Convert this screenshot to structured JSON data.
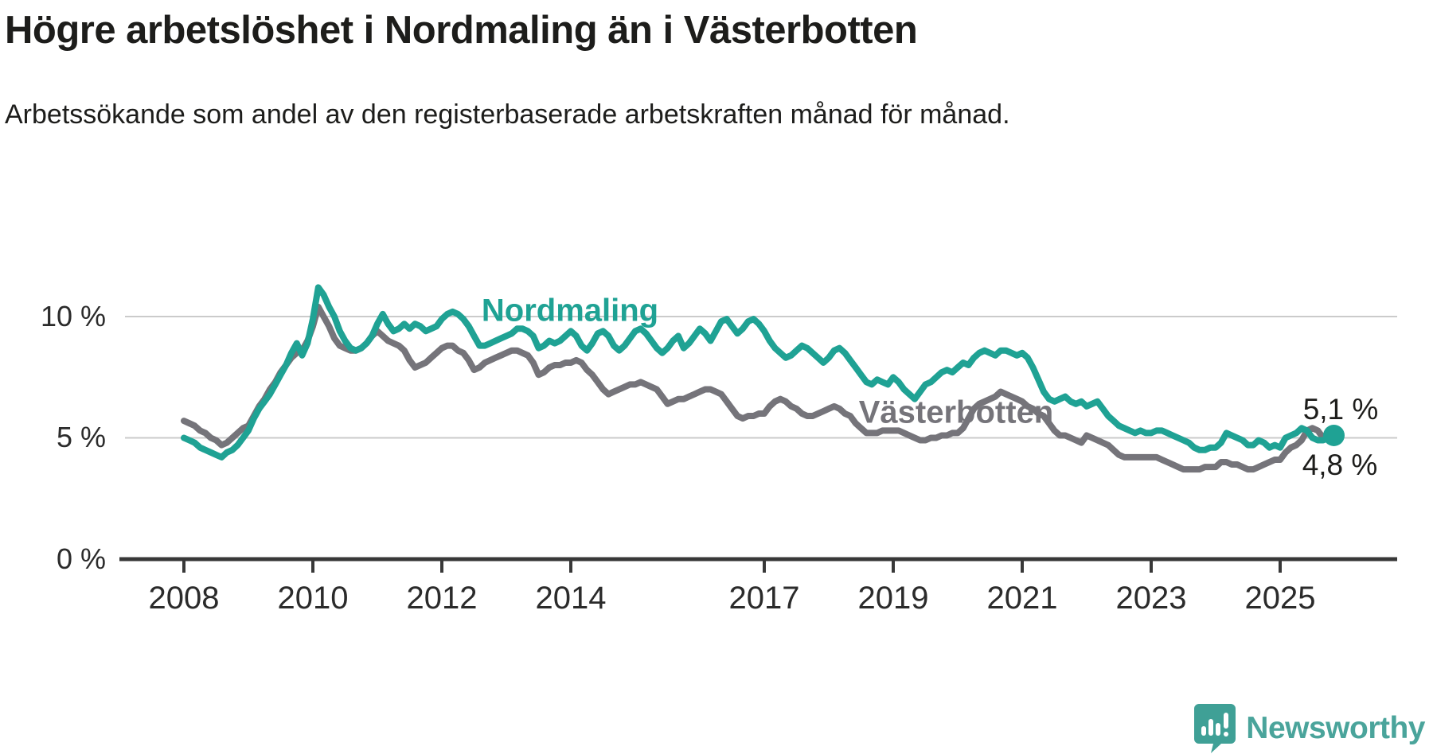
{
  "title": "Högre arbetslöshet i Nordmaling än i Västerbotten",
  "subtitle": "Arbetssökande som andel av den registerbaserade arbetskraften månad för månad.",
  "colors": {
    "nordmaling": "#1fa294",
    "vasterbotten": "#75747a",
    "grid": "#cbcbcb",
    "axis": "#383838",
    "text": "#1d1d1b",
    "logo_teal": "#4aa49b"
  },
  "labels": {
    "nordmaling": "Nordmaling",
    "vasterbotten": "Västerbotten",
    "end_value_nordmaling": "5,1 %",
    "end_value_vasterbotten": "4,8 %"
  },
  "logo": {
    "text": "Newsworthy",
    "icon": "newsworthy-speech-bubble-bars"
  },
  "chart_data": {
    "type": "line",
    "unit": "%",
    "start_year": 2008,
    "points_per_year": 12,
    "end_period": "late 2025",
    "x_ticks": [
      2008,
      2010,
      2012,
      2014,
      2017,
      2019,
      2021,
      2023,
      2025
    ],
    "y_ticks": [
      {
        "value": 0,
        "label": "0 %"
      },
      {
        "value": 5,
        "label": "5 %"
      },
      {
        "value": 10,
        "label": "10 %"
      }
    ],
    "ylim": [
      0,
      13.8
    ],
    "grid": "horizontal-only",
    "legend_position": "inline-labels",
    "series": [
      {
        "name": "Nordmaling",
        "color": "#1fa294",
        "latest_value": 5.1,
        "latest_label": "5,1 %",
        "values": [
          5.0,
          4.9,
          4.8,
          4.6,
          4.5,
          4.4,
          4.3,
          4.2,
          4.4,
          4.5,
          4.7,
          5.0,
          5.3,
          5.8,
          6.2,
          6.5,
          6.8,
          7.2,
          7.6,
          8.0,
          8.5,
          8.9,
          8.4,
          8.9,
          9.9,
          11.2,
          10.9,
          10.4,
          10.0,
          9.4,
          9.0,
          8.7,
          8.6,
          8.7,
          8.9,
          9.2,
          9.7,
          10.1,
          9.7,
          9.4,
          9.5,
          9.7,
          9.5,
          9.7,
          9.6,
          9.4,
          9.5,
          9.6,
          9.9,
          10.1,
          10.2,
          10.1,
          9.9,
          9.6,
          9.2,
          8.8,
          8.8,
          8.9,
          9.0,
          9.1,
          9.2,
          9.3,
          9.5,
          9.5,
          9.4,
          9.2,
          8.7,
          8.8,
          9.0,
          8.9,
          9.0,
          9.2,
          9.4,
          9.2,
          8.8,
          8.6,
          8.9,
          9.3,
          9.4,
          9.2,
          8.8,
          8.6,
          8.8,
          9.1,
          9.4,
          9.5,
          9.3,
          9.0,
          8.7,
          8.5,
          8.7,
          9.0,
          9.2,
          8.7,
          8.9,
          9.2,
          9.5,
          9.3,
          9.0,
          9.4,
          9.8,
          9.9,
          9.6,
          9.3,
          9.5,
          9.8,
          9.9,
          9.7,
          9.4,
          9.0,
          8.7,
          8.5,
          8.3,
          8.4,
          8.6,
          8.8,
          8.7,
          8.5,
          8.3,
          8.1,
          8.3,
          8.6,
          8.7,
          8.5,
          8.2,
          7.9,
          7.6,
          7.3,
          7.2,
          7.4,
          7.3,
          7.2,
          7.5,
          7.3,
          7.0,
          6.8,
          6.6,
          6.9,
          7.2,
          7.3,
          7.5,
          7.7,
          7.8,
          7.7,
          7.9,
          8.1,
          8.0,
          8.3,
          8.5,
          8.6,
          8.5,
          8.4,
          8.6,
          8.6,
          8.5,
          8.4,
          8.5,
          8.3,
          7.9,
          7.4,
          6.9,
          6.6,
          6.5,
          6.6,
          6.7,
          6.5,
          6.4,
          6.5,
          6.3,
          6.4,
          6.5,
          6.2,
          5.9,
          5.7,
          5.5,
          5.4,
          5.3,
          5.2,
          5.3,
          5.2,
          5.2,
          5.3,
          5.3,
          5.2,
          5.1,
          5.0,
          4.9,
          4.8,
          4.6,
          4.5,
          4.5,
          4.6,
          4.6,
          4.8,
          5.2,
          5.1,
          5.0,
          4.9,
          4.7,
          4.7,
          4.9,
          4.8,
          4.6,
          4.7,
          4.6,
          5.0,
          5.1,
          5.2,
          5.4,
          5.3,
          5.0,
          4.9,
          4.9,
          5.0,
          5.1
        ]
      },
      {
        "name": "Västerbotten",
        "color": "#75747a",
        "latest_value": 4.8,
        "latest_label": "4,8 %",
        "values": [
          5.7,
          5.6,
          5.5,
          5.3,
          5.2,
          5.0,
          4.9,
          4.7,
          4.8,
          5.0,
          5.2,
          5.4,
          5.5,
          5.9,
          6.3,
          6.6,
          7.0,
          7.3,
          7.7,
          8.0,
          8.3,
          8.5,
          8.6,
          9.0,
          9.6,
          10.4,
          10.0,
          9.6,
          9.1,
          8.8,
          8.7,
          8.6,
          8.6,
          8.7,
          8.9,
          9.2,
          9.4,
          9.2,
          9.0,
          8.9,
          8.8,
          8.6,
          8.2,
          7.9,
          8.0,
          8.1,
          8.3,
          8.5,
          8.7,
          8.8,
          8.8,
          8.6,
          8.5,
          8.2,
          7.8,
          7.9,
          8.1,
          8.2,
          8.3,
          8.4,
          8.5,
          8.6,
          8.6,
          8.5,
          8.4,
          8.1,
          7.6,
          7.7,
          7.9,
          8.0,
          8.0,
          8.1,
          8.1,
          8.2,
          8.1,
          7.8,
          7.6,
          7.3,
          7.0,
          6.8,
          6.9,
          7.0,
          7.1,
          7.2,
          7.2,
          7.3,
          7.2,
          7.1,
          7.0,
          6.7,
          6.4,
          6.5,
          6.6,
          6.6,
          6.7,
          6.8,
          6.9,
          7.0,
          7.0,
          6.9,
          6.8,
          6.5,
          6.2,
          5.9,
          5.8,
          5.9,
          5.9,
          6.0,
          6.0,
          6.3,
          6.5,
          6.6,
          6.5,
          6.3,
          6.2,
          6.0,
          5.9,
          5.9,
          6.0,
          6.1,
          6.2,
          6.3,
          6.2,
          6.0,
          5.9,
          5.6,
          5.4,
          5.2,
          5.2,
          5.2,
          5.3,
          5.3,
          5.3,
          5.3,
          5.2,
          5.1,
          5.0,
          4.9,
          4.9,
          5.0,
          5.0,
          5.1,
          5.1,
          5.2,
          5.2,
          5.4,
          5.8,
          6.2,
          6.4,
          6.5,
          6.6,
          6.7,
          6.9,
          6.8,
          6.7,
          6.6,
          6.5,
          6.3,
          6.2,
          6.0,
          5.9,
          5.6,
          5.3,
          5.1,
          5.1,
          5.0,
          4.9,
          4.8,
          5.1,
          5.0,
          4.9,
          4.8,
          4.7,
          4.5,
          4.3,
          4.2,
          4.2,
          4.2,
          4.2,
          4.2,
          4.2,
          4.2,
          4.1,
          4.0,
          3.9,
          3.8,
          3.7,
          3.7,
          3.7,
          3.7,
          3.8,
          3.8,
          3.8,
          4.0,
          4.0,
          3.9,
          3.9,
          3.8,
          3.7,
          3.7,
          3.8,
          3.9,
          4.0,
          4.1,
          4.1,
          4.4,
          4.6,
          4.7,
          4.9,
          5.3,
          5.4,
          5.3,
          5.0,
          4.9,
          4.8
        ]
      }
    ]
  }
}
